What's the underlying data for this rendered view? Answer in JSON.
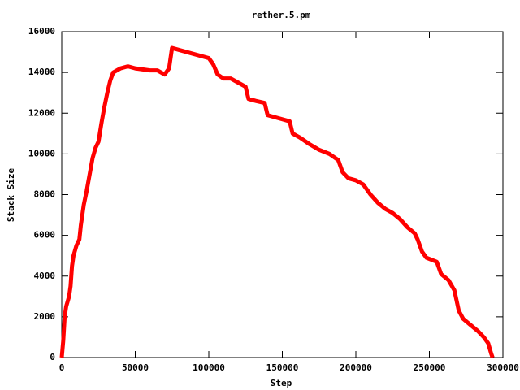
{
  "chart_data": {
    "type": "line",
    "title": "rether.5.pm",
    "x_label": "Step",
    "y_label": "Stack Size",
    "color": "#ff0000",
    "x": [
      0,
      1000,
      2000,
      3000,
      5000,
      6000,
      7000,
      8000,
      10000,
      12000,
      13000,
      15000,
      17000,
      19000,
      21000,
      23000,
      25000,
      27000,
      29000,
      31000,
      33000,
      35000,
      40000,
      45000,
      50000,
      55000,
      60000,
      65000,
      70000,
      73000,
      75000,
      80000,
      85000,
      90000,
      95000,
      100000,
      103000,
      106000,
      110000,
      115000,
      120000,
      125000,
      127000,
      132000,
      138000,
      140000,
      145000,
      150000,
      155000,
      157000,
      162000,
      168000,
      175000,
      182000,
      188000,
      191000,
      195000,
      200000,
      205000,
      210000,
      215000,
      220000,
      225000,
      230000,
      235000,
      240000,
      242000,
      245000,
      248000,
      255000,
      258000,
      263000,
      267000,
      270000,
      273000,
      278000,
      283000,
      287000,
      290000,
      292000,
      293000
    ],
    "values": [
      0,
      800,
      2000,
      2500,
      3000,
      3500,
      4500,
      5000,
      5500,
      5800,
      6500,
      7500,
      8200,
      9000,
      9800,
      10300,
      10600,
      11500,
      12300,
      13000,
      13600,
      14000,
      14200,
      14300,
      14200,
      14150,
      14100,
      14100,
      13900,
      14200,
      15200,
      15100,
      15000,
      14900,
      14800,
      14700,
      14400,
      13900,
      13700,
      13700,
      13500,
      13300,
      12700,
      12600,
      12500,
      11900,
      11800,
      11700,
      11600,
      11000,
      10800,
      10500,
      10200,
      10000,
      9700,
      9100,
      8800,
      8700,
      8500,
      8000,
      7600,
      7300,
      7100,
      6800,
      6400,
      6100,
      5800,
      5200,
      4900,
      4700,
      4100,
      3800,
      3300,
      2300,
      1900,
      1600,
      1300,
      1000,
      700,
      200,
      0
    ],
    "xlim": [
      0,
      300000
    ],
    "xticks": [
      0,
      50000,
      100000,
      150000,
      200000,
      250000,
      300000
    ],
    "ylim": [
      0,
      16000
    ],
    "yticks": [
      0,
      2000,
      4000,
      6000,
      8000,
      10000,
      12000,
      14000,
      16000
    ]
  }
}
